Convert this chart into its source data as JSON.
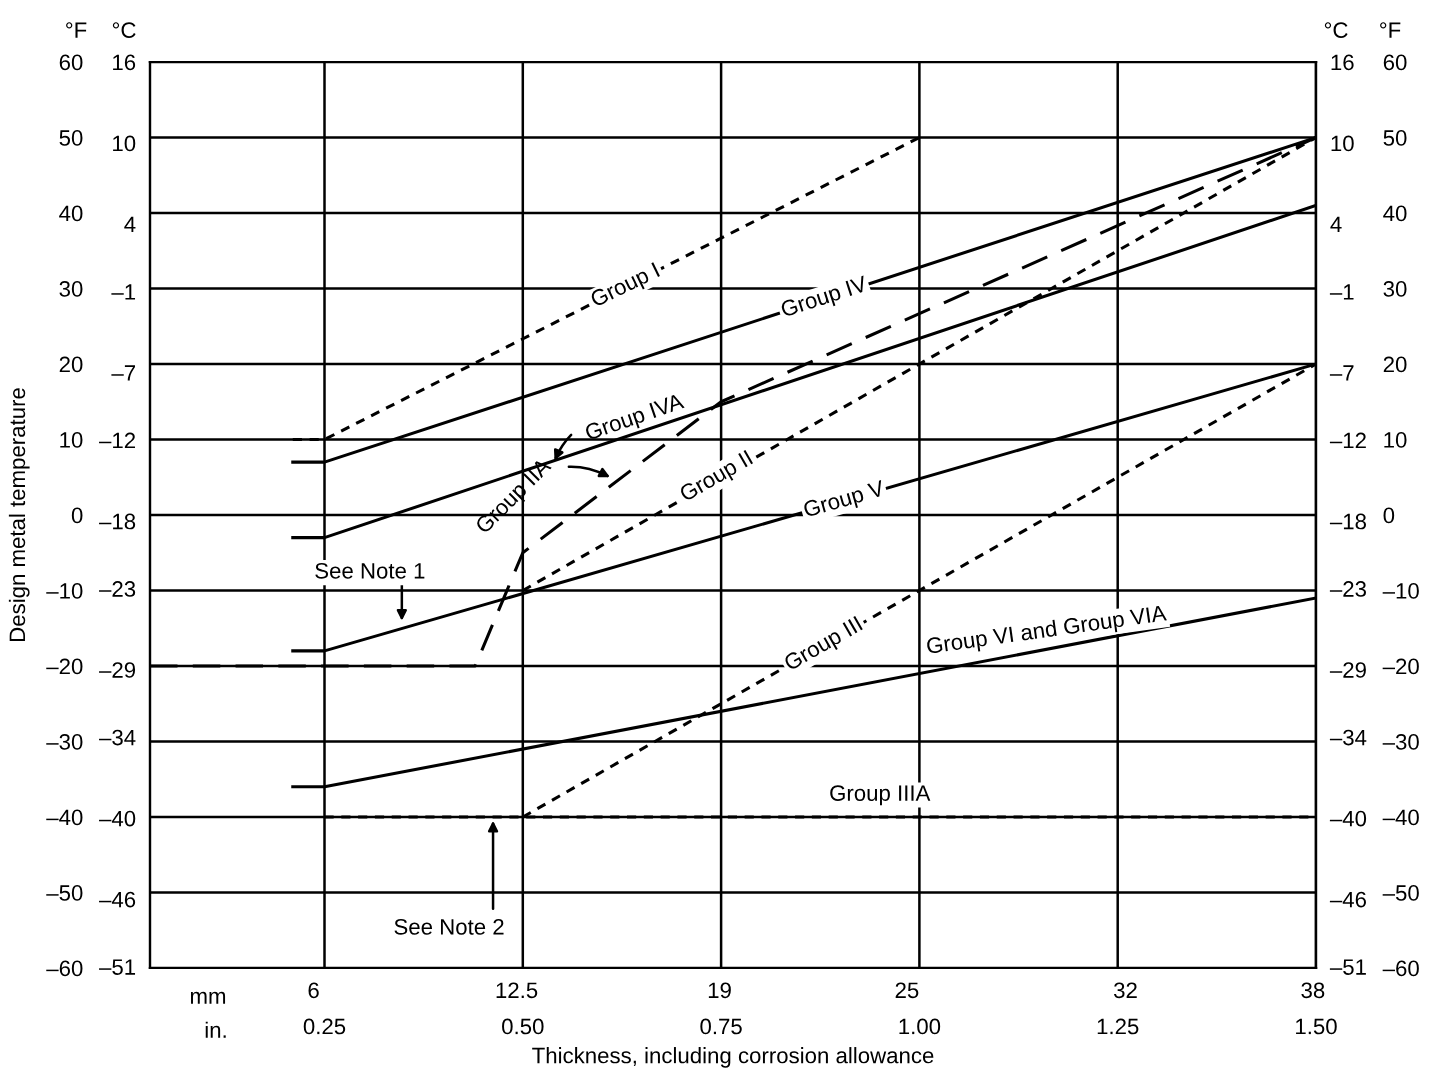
{
  "chart_data": {
    "type": "line",
    "xlabel": "Thickness, including corrosion allowance",
    "ylabel": "Design metal temperature",
    "xlim": [
      0.03,
      1.5
    ],
    "xticks": [
      {
        "value": 0.25,
        "label": "0.25"
      },
      {
        "value": 0.5,
        "label": "0.50"
      },
      0.75,
      {
        "value": 1.0,
        "label": "1.00"
      },
      1.25,
      {
        "value": 1.5,
        "label": "1.50"
      }
    ],
    "x2lim": [
      0.762,
      38.1
    ],
    "x2ticks": [
      6,
      12.5,
      19,
      25,
      32,
      38
    ],
    "ylim": [
      -60,
      60
    ],
    "yticks": [
      {
        "value": -60,
        "label": "–60"
      },
      {
        "value": -50,
        "label": "–50"
      },
      {
        "value": -40,
        "label": "–40"
      },
      {
        "value": -30,
        "label": "–30"
      },
      {
        "value": -20,
        "label": "–20"
      },
      {
        "value": -10,
        "label": "–10"
      },
      {
        "value": 0,
        "label": "0"
      },
      {
        "value": 10,
        "label": "10"
      },
      {
        "value": 20,
        "label": "20"
      },
      {
        "value": 30,
        "label": "30"
      },
      {
        "value": 40,
        "label": "40"
      },
      {
        "value": 50,
        "label": "50"
      },
      {
        "value": 60,
        "label": "60"
      }
    ],
    "y2lim": [
      -51.1,
      16
    ],
    "y2ticks": [
      {
        "value": -51,
        "label": "–51"
      },
      {
        "value": -46,
        "label": "–46"
      },
      {
        "value": -40,
        "label": "–40"
      },
      {
        "value": -34,
        "label": "–34"
      },
      {
        "value": -29,
        "label": "–29"
      },
      {
        "value": -23,
        "label": "–23"
      },
      {
        "value": -18,
        "label": "–18"
      },
      {
        "value": -12,
        "label": "–12"
      },
      {
        "value": -7,
        "label": "–7"
      },
      {
        "value": -1,
        "label": "–1"
      },
      {
        "value": 4,
        "label": "4"
      },
      {
        "value": 10,
        "label": "10"
      },
      {
        "value": 16,
        "label": "16"
      }
    ],
    "grid": true,
    "marker": "none",
    "series": [
      {
        "color": "#000000",
        "line_style": "dotted",
        "x": [
          0.21,
          0.25,
          1.0
        ],
        "values": [
          10,
          10,
          50
        ]
      },
      {
        "color": "#000000",
        "line_style": "solid",
        "x": [
          0.21,
          0.25,
          1.5
        ],
        "values": [
          7,
          7,
          50
        ]
      },
      {
        "color": "#000000",
        "line_style": "solid",
        "x": [
          0.21,
          0.25,
          1.5
        ],
        "values": [
          -3,
          -3,
          41
        ]
      },
      {
        "color": "#000000",
        "line_style": "dashed",
        "x": [
          0.03,
          0.44,
          0.5,
          0.75,
          1.5
        ],
        "values": [
          -20,
          -20,
          -5,
          15,
          50
        ]
      },
      {
        "color": "#000000",
        "line_style": "dotted",
        "x": [
          0.5,
          1.5
        ],
        "values": [
          -10,
          50
        ]
      },
      {
        "color": "#000000",
        "line_style": "solid",
        "x": [
          0.21,
          0.25,
          1.5
        ],
        "values": [
          -18,
          -18,
          20
        ]
      },
      {
        "color": "#000000",
        "line_style": "dotted",
        "x": [
          0.5,
          1.5
        ],
        "values": [
          -40,
          20
        ]
      },
      {
        "color": "#000000",
        "line_style": "solid",
        "x": [
          0.21,
          0.25,
          1.5
        ],
        "values": [
          -36,
          -36,
          -11
        ]
      },
      {
        "color": "#000000",
        "line_style": "dotted",
        "x": [
          0.25,
          1.5
        ],
        "values": [
          -40,
          -40
        ]
      }
    ],
    "annotations": [
      {
        "text": "Group I",
        "x": 0.63,
        "y": 30.3
      },
      {
        "text": "Group IV",
        "x": 0.88,
        "y": 28.7
      },
      {
        "text": "Group IVA",
        "x": 0.54,
        "y": 7.2
      },
      {
        "text": "Group IIA",
        "x": 0.61,
        "y": 5
      },
      {
        "text": "Group II",
        "x": 0.745,
        "y": 5
      },
      {
        "text": "Group V",
        "x": 0.905,
        "y": 1.9
      },
      {
        "text": "Group III",
        "x": 0.88,
        "y": -17.2
      },
      {
        "text": "Group VI and Group VIA",
        "x": 1.16,
        "y": -17.8
      },
      {
        "text": "Group IIIA",
        "x": 0.95,
        "y": -40
      },
      {
        "text": "See Note 1",
        "x": 0.3475,
        "y": -14
      },
      {
        "text": "See Note 2",
        "x": 0.4625,
        "y": -40.5
      },
      "°F",
      "°C",
      "mm",
      "in."
    ]
  }
}
